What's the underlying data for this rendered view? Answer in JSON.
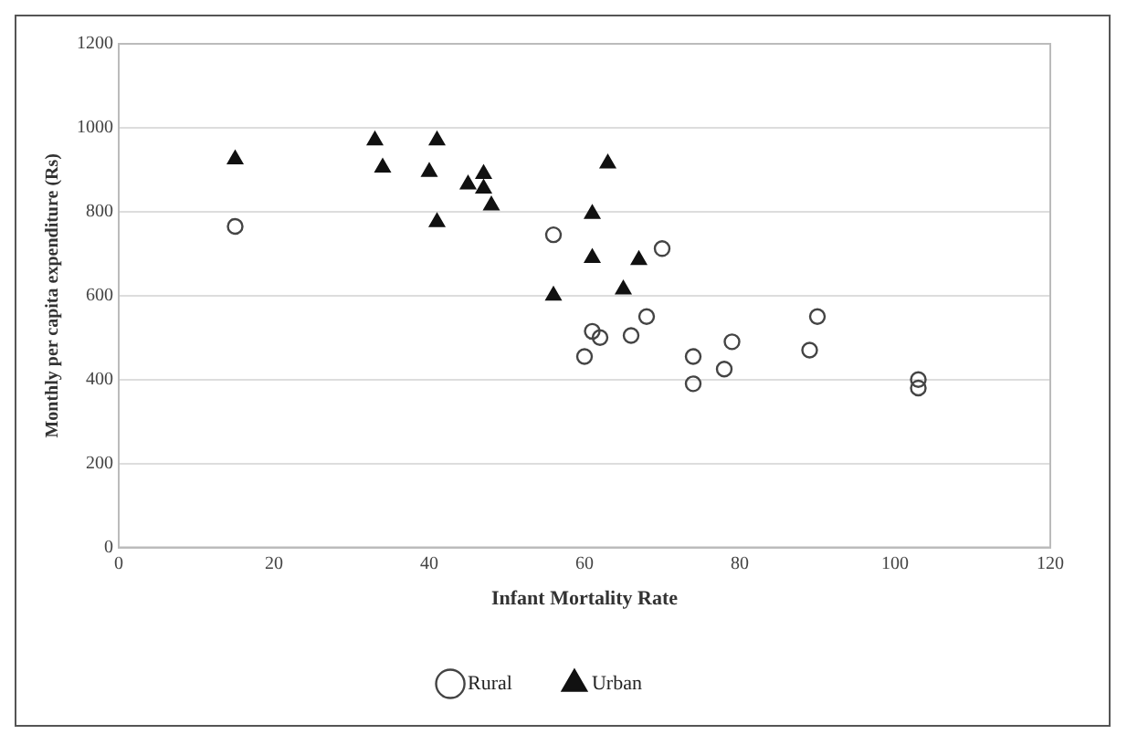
{
  "chart_data": {
    "type": "scatter",
    "xlabel": "Infant Mortality Rate",
    "ylabel": "Monthly per capita expenditure (Rs)",
    "xlim": [
      0,
      120
    ],
    "xticks": [
      0,
      20,
      40,
      60,
      80,
      100,
      120
    ],
    "ylim": [
      0,
      1200
    ],
    "yticks": [
      0,
      200,
      400,
      600,
      800,
      1000,
      1200
    ],
    "grid": "y",
    "legend": "bottom",
    "series": [
      {
        "name": "Rural",
        "color": "#444444",
        "marker": "circle",
        "x": [
          15,
          56,
          70,
          61,
          62,
          60,
          66,
          68,
          74,
          74,
          78,
          79,
          89,
          90,
          103,
          103
        ],
        "values": [
          765,
          745,
          712,
          515,
          500,
          455,
          505,
          550,
          455,
          390,
          425,
          490,
          470,
          550,
          400,
          380
        ]
      },
      {
        "name": "Urban",
        "color": "#111111",
        "marker": "triangle",
        "x": [
          15,
          33,
          34,
          40,
          41,
          41,
          45,
          47,
          47,
          48,
          63,
          61,
          61,
          56,
          65,
          67
        ],
        "values": [
          925,
          970,
          905,
          895,
          970,
          775,
          865,
          890,
          855,
          815,
          915,
          795,
          690,
          600,
          615,
          685
        ]
      }
    ]
  }
}
